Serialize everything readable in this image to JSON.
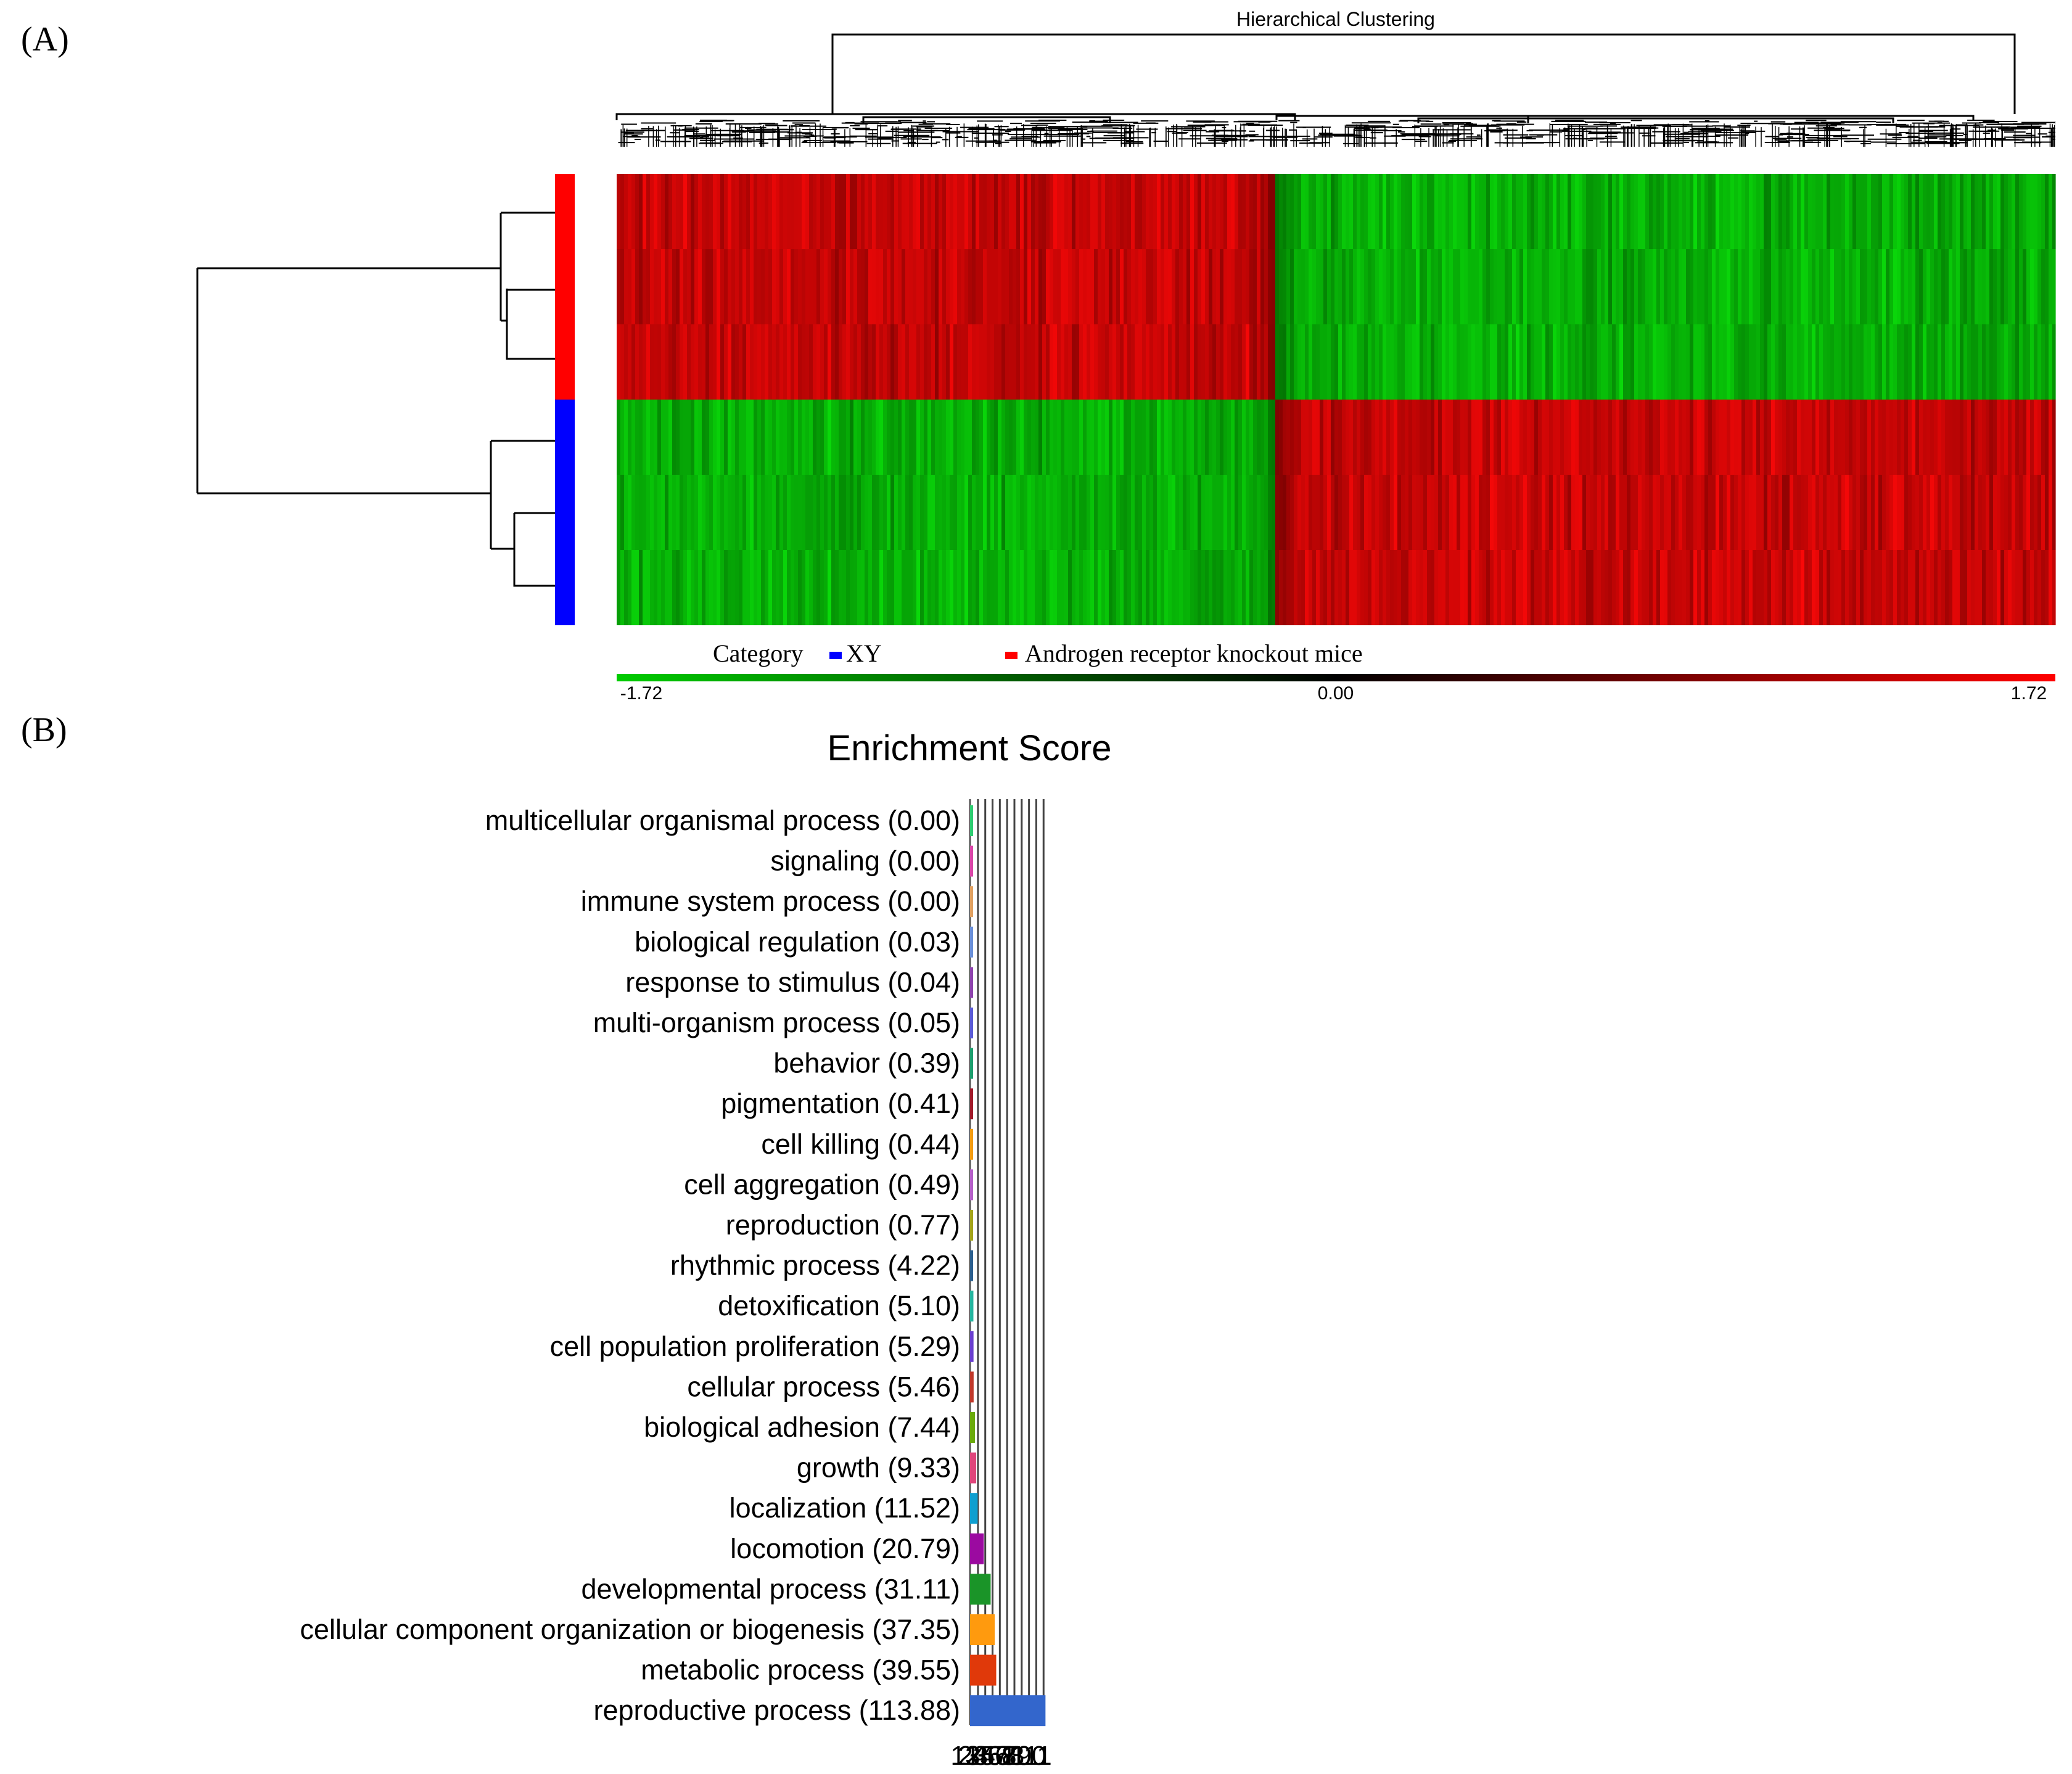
{
  "figure": {
    "panel_a_label": "(A)",
    "panel_b_label": "(B)"
  },
  "chart_data": [
    {
      "type": "heatmap",
      "title": "Hierarchical Clustering",
      "rows": 6,
      "row_groups": [
        {
          "name": "Androgen receptor knockout mice",
          "color": "#ff0000",
          "rows": 3
        },
        {
          "name": "XY",
          "color": "#0000ff",
          "rows": 3
        }
      ],
      "legend": {
        "label": "Category",
        "items": [
          {
            "name": "XY",
            "color": "#0000ff"
          },
          {
            "name": "Androgen receptor knockout mice",
            "color": "#ff0000"
          }
        ]
      },
      "colorscale": {
        "min_label": "-1.72",
        "mid_label": "0.00",
        "max_label": "1.72",
        "min": -1.72,
        "mid": 0.0,
        "max": 1.72,
        "low_color": "#00cc00",
        "mid_color": "#000000",
        "high_color": "#ff0000"
      },
      "pattern": "left cluster up in knockout rows, right cluster up in XY rows"
    },
    {
      "type": "bar",
      "orientation": "horizontal",
      "title": "Enrichment Score",
      "xlim": [
        1,
        111
      ],
      "xticks": [
        "1",
        "12",
        "23",
        "34",
        "45",
        "56",
        "67",
        "78",
        "89",
        "100",
        "111"
      ],
      "categories": [
        {
          "label": "multicellular organismal process (0.00)",
          "value": 0.0,
          "color": "#2ecc71"
        },
        {
          "label": "signaling (0.00)",
          "value": 0.0,
          "color": "#d946a8"
        },
        {
          "label": "immune system process (0.00)",
          "value": 0.0,
          "color": "#e0a060"
        },
        {
          "label": "biological regulation (0.03)",
          "value": 0.03,
          "color": "#6a8fd8"
        },
        {
          "label": "response to stimulus (0.04)",
          "value": 0.04,
          "color": "#8e44ad"
        },
        {
          "label": "multi-organism process (0.05)",
          "value": 0.05,
          "color": "#5b5bd6"
        },
        {
          "label": "behavior (0.39)",
          "value": 0.39,
          "color": "#1e9e6e"
        },
        {
          "label": "pigmentation (0.41)",
          "value": 0.41,
          "color": "#a01a2a"
        },
        {
          "label": "cell killing (0.44)",
          "value": 0.44,
          "color": "#f39c12"
        },
        {
          "label": "cell aggregation (0.49)",
          "value": 0.49,
          "color": "#b45fc8"
        },
        {
          "label": "reproduction (0.77)",
          "value": 0.77,
          "color": "#a3a31a"
        },
        {
          "label": "rhythmic process (4.22)",
          "value": 4.22,
          "color": "#2c5f8e"
        },
        {
          "label": "detoxification (5.10)",
          "value": 5.1,
          "color": "#26b5a0"
        },
        {
          "label": "cell population proliferation (5.29)",
          "value": 5.29,
          "color": "#6a3fcf"
        },
        {
          "label": "cellular process (5.46)",
          "value": 5.46,
          "color": "#c0392b"
        },
        {
          "label": "biological adhesion (7.44)",
          "value": 7.44,
          "color": "#6aaa0a"
        },
        {
          "label": "growth (9.33)",
          "value": 9.33,
          "color": "#e0457b"
        },
        {
          "label": "localization (11.52)",
          "value": 11.52,
          "color": "#0e9fd0"
        },
        {
          "label": "locomotion (20.79)",
          "value": 20.79,
          "color": "#9b0aa0"
        },
        {
          "label": "developmental process (31.11)",
          "value": 31.11,
          "color": "#1a9428"
        },
        {
          "label": "cellular component organization or biogenesis (37.35)",
          "value": 37.35,
          "color": "#ff9a0e"
        },
        {
          "label": "metabolic process (39.55)",
          "value": 39.55,
          "color": "#e0390a"
        },
        {
          "label": "reproductive process (113.88)",
          "value": 113.88,
          "color": "#3366cc"
        }
      ]
    }
  ]
}
